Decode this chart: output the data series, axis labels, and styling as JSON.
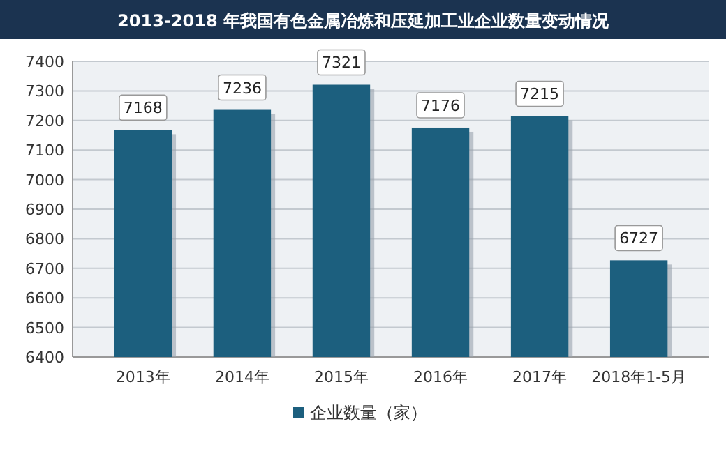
{
  "chart_data": {
    "type": "bar",
    "title": "2013-2018 年我国有色金属冶炼和压延加工业企业数量变动情况",
    "categories": [
      "2013年",
      "2014年",
      "2015年",
      "2016年",
      "2017年",
      "2018年1-5月"
    ],
    "series": [
      {
        "name": "企业数量（家）",
        "color": "#1c5f7e",
        "values": [
          7168,
          7236,
          7321,
          7176,
          7215,
          6727
        ]
      }
    ],
    "ylim": [
      6400,
      7400
    ],
    "yticks": [
      6400,
      6500,
      6600,
      6700,
      6800,
      6900,
      7000,
      7100,
      7200,
      7300,
      7400
    ],
    "grid": true,
    "data_labels": true,
    "legend": "bottom"
  }
}
